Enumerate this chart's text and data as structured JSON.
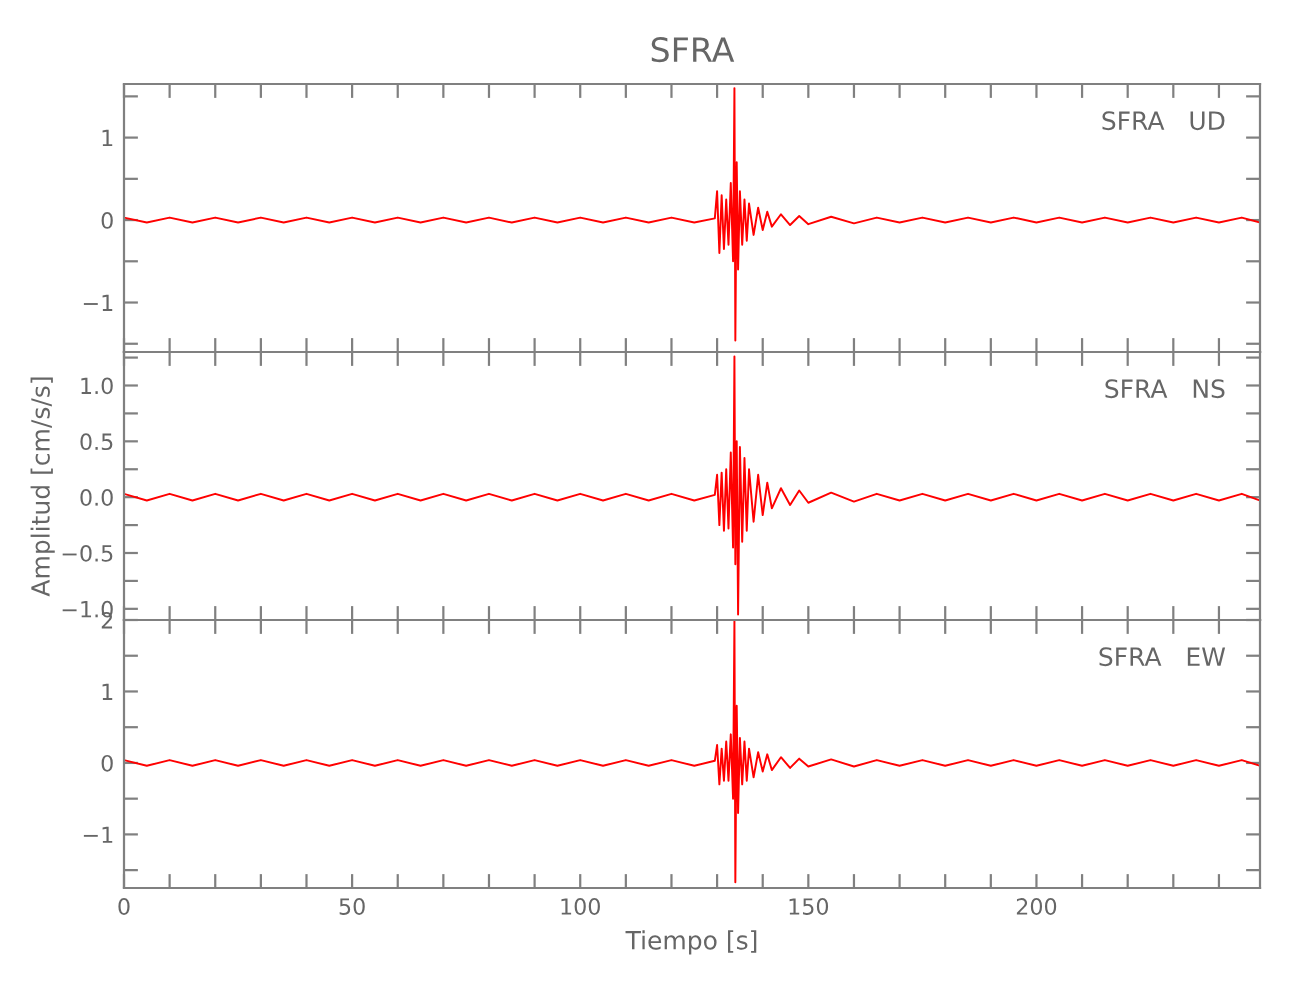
{
  "chart_data": [
    {
      "type": "line",
      "title": "SFRA",
      "annotations": [
        "SFRA   UD"
      ],
      "xlim": [
        0,
        249
      ],
      "ylim": [
        -1.6,
        1.65
      ],
      "tick_labels": "y",
      "grid": false,
      "legend": false,
      "line_style": "solid",
      "marker": "none",
      "xticks": [
        0,
        {
          "value": 10,
          "label": null
        },
        {
          "value": 20,
          "label": null
        },
        {
          "value": 30,
          "label": null
        },
        {
          "value": 40,
          "label": null
        },
        50,
        {
          "value": 60,
          "label": null
        },
        {
          "value": 70,
          "label": null
        },
        {
          "value": 80,
          "label": null
        },
        {
          "value": 90,
          "label": null
        },
        100,
        {
          "value": 110,
          "label": null
        },
        {
          "value": 120,
          "label": null
        },
        {
          "value": 130,
          "label": null
        },
        {
          "value": 140,
          "label": null
        },
        150,
        {
          "value": 160,
          "label": null
        },
        {
          "value": 170,
          "label": null
        },
        {
          "value": 180,
          "label": null
        },
        {
          "value": 190,
          "label": null
        },
        200,
        {
          "value": 210,
          "label": null
        },
        {
          "value": 220,
          "label": null
        },
        {
          "value": 230,
          "label": null
        },
        {
          "value": 240,
          "label": null
        }
      ],
      "yticks": [
        {
          "value": -1.5,
          "label": null
        },
        {
          "value": -1,
          "label": "−1"
        },
        {
          "value": -0.5,
          "label": null
        },
        0,
        {
          "value": 0.5,
          "label": null
        },
        1,
        {
          "value": 1.5,
          "label": null
        }
      ],
      "x": [
        0,
        5,
        10,
        15,
        20,
        25,
        30,
        35,
        40,
        45,
        50,
        55,
        60,
        65,
        70,
        75,
        80,
        85,
        90,
        95,
        100,
        105,
        110,
        115,
        120,
        125,
        129.5,
        130,
        130.5,
        131,
        131.5,
        132,
        132.5,
        133,
        133.5,
        133.8,
        134,
        134.3,
        134.6,
        135,
        135.5,
        136,
        136.5,
        137,
        138,
        139,
        140,
        141,
        142,
        144,
        146,
        148,
        150,
        155,
        160,
        165,
        170,
        175,
        180,
        185,
        190,
        195,
        200,
        205,
        210,
        215,
        220,
        225,
        230,
        235,
        240,
        245,
        249
      ],
      "series": [
        {
          "color": "#ff0000",
          "values": [
            0.03,
            -0.03,
            0.03,
            -0.03,
            0.03,
            -0.03,
            0.03,
            -0.03,
            0.03,
            -0.03,
            0.03,
            -0.03,
            0.03,
            -0.03,
            0.03,
            -0.03,
            0.03,
            -0.03,
            0.03,
            -0.03,
            0.03,
            -0.03,
            0.03,
            -0.03,
            0.03,
            -0.03,
            0.02,
            0.35,
            -0.4,
            0.3,
            -0.35,
            0.25,
            -0.3,
            0.45,
            -0.5,
            1.6,
            -1.46,
            0.7,
            -0.6,
            0.35,
            -0.3,
            0.25,
            -0.25,
            0.2,
            -0.18,
            0.15,
            -0.12,
            0.1,
            -0.08,
            0.07,
            -0.06,
            0.05,
            -0.05,
            0.04,
            -0.04,
            0.03,
            -0.03,
            0.03,
            -0.03,
            0.03,
            -0.03,
            0.03,
            -0.03,
            0.03,
            -0.03,
            0.03,
            -0.03,
            0.03,
            -0.03,
            0.03,
            -0.03,
            0.03,
            -0.03
          ]
        }
      ]
    },
    {
      "type": "line",
      "ylabel": "Amplitud [cm/s/s]",
      "annotations": [
        "SFRA   NS"
      ],
      "xlim": [
        0,
        249
      ],
      "ylim": [
        -1.1,
        1.3
      ],
      "tick_labels": "y",
      "grid": false,
      "legend": false,
      "line_style": "solid",
      "marker": "none",
      "xticks": [
        0,
        {
          "value": 10,
          "label": null
        },
        {
          "value": 20,
          "label": null
        },
        {
          "value": 30,
          "label": null
        },
        {
          "value": 40,
          "label": null
        },
        50,
        {
          "value": 60,
          "label": null
        },
        {
          "value": 70,
          "label": null
        },
        {
          "value": 80,
          "label": null
        },
        {
          "value": 90,
          "label": null
        },
        100,
        {
          "value": 110,
          "label": null
        },
        {
          "value": 120,
          "label": null
        },
        {
          "value": 130,
          "label": null
        },
        {
          "value": 140,
          "label": null
        },
        150,
        {
          "value": 160,
          "label": null
        },
        {
          "value": 170,
          "label": null
        },
        {
          "value": 180,
          "label": null
        },
        {
          "value": 190,
          "label": null
        },
        200,
        {
          "value": 210,
          "label": null
        },
        {
          "value": 220,
          "label": null
        },
        {
          "value": 230,
          "label": null
        },
        {
          "value": 240,
          "label": null
        }
      ],
      "yticks": [
        {
          "value": -1.0,
          "label": "−1.0"
        },
        {
          "value": -0.75,
          "label": null
        },
        {
          "value": -0.5,
          "label": "−0.5"
        },
        {
          "value": -0.25,
          "label": null
        },
        {
          "value": 0,
          "label": "0.0"
        },
        {
          "value": 0.25,
          "label": null
        },
        {
          "value": 0.5,
          "label": "0.5"
        },
        {
          "value": 0.75,
          "label": null
        },
        {
          "value": 1.0,
          "label": "1.0"
        },
        {
          "value": 1.25,
          "label": null
        }
      ],
      "x": [
        0,
        5,
        10,
        15,
        20,
        25,
        30,
        35,
        40,
        45,
        50,
        55,
        60,
        65,
        70,
        75,
        80,
        85,
        90,
        95,
        100,
        105,
        110,
        115,
        120,
        125,
        129.5,
        130,
        130.5,
        131,
        131.5,
        132,
        132.5,
        133,
        133.5,
        133.8,
        134,
        134.3,
        134.6,
        135,
        135.5,
        136,
        136.5,
        137,
        138,
        139,
        140,
        141,
        142,
        144,
        146,
        148,
        150,
        155,
        160,
        165,
        170,
        175,
        180,
        185,
        190,
        195,
        200,
        205,
        210,
        215,
        220,
        225,
        230,
        235,
        240,
        245,
        249
      ],
      "series": [
        {
          "color": "#ff0000",
          "values": [
            0.03,
            -0.03,
            0.03,
            -0.03,
            0.03,
            -0.03,
            0.03,
            -0.03,
            0.03,
            -0.03,
            0.03,
            -0.03,
            0.03,
            -0.03,
            0.03,
            -0.03,
            0.03,
            -0.03,
            0.03,
            -0.03,
            0.03,
            -0.03,
            0.03,
            -0.03,
            0.03,
            -0.03,
            0.02,
            0.2,
            -0.25,
            0.22,
            -0.3,
            0.25,
            -0.28,
            0.4,
            -0.45,
            1.26,
            -0.6,
            0.5,
            -1.05,
            0.45,
            -0.4,
            0.35,
            -0.3,
            0.25,
            -0.22,
            0.2,
            -0.16,
            0.13,
            -0.1,
            0.08,
            -0.07,
            0.06,
            -0.05,
            0.04,
            -0.04,
            0.03,
            -0.03,
            0.03,
            -0.03,
            0.03,
            -0.03,
            0.03,
            -0.03,
            0.03,
            -0.03,
            0.03,
            -0.03,
            0.03,
            -0.03,
            0.03,
            -0.03,
            0.03,
            -0.03
          ]
        }
      ]
    },
    {
      "type": "line",
      "xlabel": "Tiempo [s]",
      "annotations": [
        "SFRA   EW"
      ],
      "xlim": [
        0,
        249
      ],
      "ylim": [
        -1.75,
        2
      ],
      "grid": false,
      "legend": false,
      "line_style": "solid",
      "marker": "none",
      "xticks": [
        0,
        {
          "value": 10,
          "label": null
        },
        {
          "value": 20,
          "label": null
        },
        {
          "value": 30,
          "label": null
        },
        {
          "value": 40,
          "label": null
        },
        50,
        {
          "value": 60,
          "label": null
        },
        {
          "value": 70,
          "label": null
        },
        {
          "value": 80,
          "label": null
        },
        {
          "value": 90,
          "label": null
        },
        100,
        {
          "value": 110,
          "label": null
        },
        {
          "value": 120,
          "label": null
        },
        {
          "value": 130,
          "label": null
        },
        {
          "value": 140,
          "label": null
        },
        150,
        {
          "value": 160,
          "label": null
        },
        {
          "value": 170,
          "label": null
        },
        {
          "value": 180,
          "label": null
        },
        {
          "value": 190,
          "label": null
        },
        200,
        {
          "value": 210,
          "label": null
        },
        {
          "value": 220,
          "label": null
        },
        {
          "value": 230,
          "label": null
        },
        {
          "value": 240,
          "label": null
        }
      ],
      "yticks": [
        {
          "value": -1.5,
          "label": null
        },
        {
          "value": -1,
          "label": "−1"
        },
        {
          "value": -0.5,
          "label": null
        },
        0,
        {
          "value": 0.5,
          "label": null
        },
        1,
        {
          "value": 1.5,
          "label": null
        },
        2
      ],
      "x": [
        0,
        5,
        10,
        15,
        20,
        25,
        30,
        35,
        40,
        45,
        50,
        55,
        60,
        65,
        70,
        75,
        80,
        85,
        90,
        95,
        100,
        105,
        110,
        115,
        120,
        125,
        129.5,
        130,
        130.5,
        131,
        131.5,
        132,
        132.5,
        133,
        133.5,
        133.8,
        134,
        134.3,
        134.6,
        135,
        135.5,
        136,
        136.5,
        137,
        138,
        139,
        140,
        141,
        142,
        144,
        146,
        148,
        150,
        155,
        160,
        165,
        170,
        175,
        180,
        185,
        190,
        195,
        200,
        205,
        210,
        215,
        220,
        225,
        230,
        235,
        240,
        245,
        249
      ],
      "series": [
        {
          "color": "#ff0000",
          "values": [
            0.04,
            -0.04,
            0.04,
            -0.04,
            0.04,
            -0.04,
            0.04,
            -0.04,
            0.04,
            -0.04,
            0.04,
            -0.04,
            0.04,
            -0.04,
            0.04,
            -0.04,
            0.04,
            -0.04,
            0.04,
            -0.04,
            0.04,
            -0.04,
            0.04,
            -0.04,
            0.04,
            -0.04,
            0.03,
            0.25,
            -0.3,
            0.2,
            -0.25,
            0.3,
            -0.25,
            0.4,
            -0.5,
            2.0,
            -1.67,
            0.8,
            -0.7,
            0.35,
            -0.3,
            0.3,
            -0.25,
            0.2,
            -0.2,
            0.15,
            -0.12,
            0.12,
            -0.1,
            0.08,
            -0.07,
            0.06,
            -0.05,
            0.05,
            -0.05,
            0.04,
            -0.04,
            0.04,
            -0.04,
            0.04,
            -0.04,
            0.04,
            -0.04,
            0.04,
            -0.04,
            0.04,
            -0.04,
            0.04,
            -0.04,
            0.04,
            -0.04,
            0.04,
            -0.04
          ]
        }
      ]
    }
  ]
}
